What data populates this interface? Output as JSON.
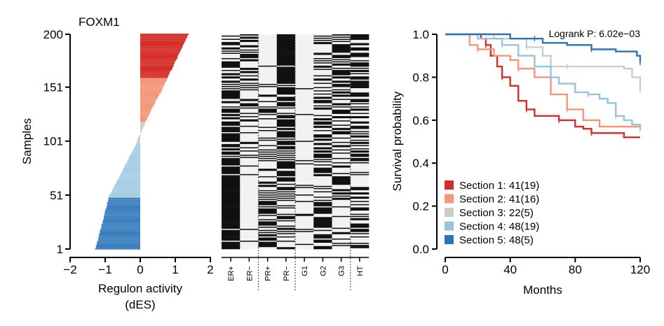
{
  "figure": {
    "gene": "FOXM1",
    "left_panel": {
      "ylabel": "Samples",
      "xlabel_line1": "Regulon activity",
      "xlabel_line2": "(dES)",
      "yticks": [
        "200",
        "151",
        "101",
        "51",
        "1"
      ],
      "xticks": [
        "−2",
        "−1",
        "0",
        "1",
        "2"
      ]
    },
    "heatmap": {
      "columns": [
        "ER+",
        "ER−",
        "PR+",
        "PR−",
        "G1",
        "G2",
        "G3",
        "HT"
      ]
    },
    "right_panel": {
      "ylabel": "Survival probability",
      "xlabel": "Months",
      "pvalue_label": "Logrank P:  6.02e−03",
      "yticks": [
        "1.0",
        "0.8",
        "0.6",
        "0.4",
        "0.2",
        "0.0"
      ],
      "xticks": [
        "0",
        "40",
        "80",
        "120"
      ]
    }
  },
  "chart_data": [
    {
      "type": "bar",
      "orientation": "horizontal",
      "n_samples": 200,
      "xlim": [
        -2,
        2
      ],
      "ylim": [
        1,
        200
      ],
      "sections": [
        {
          "samples": [
            1,
            48
          ],
          "color": "#3a7fbd",
          "dES_range": [
            -1.28,
            -0.9
          ]
        },
        {
          "samples": [
            49,
            96
          ],
          "color": "#a6cde3",
          "dES_range": [
            -0.9,
            -0.15
          ]
        },
        {
          "samples": [
            97,
            118
          ],
          "color": "#cccccc",
          "dES_range": [
            -0.15,
            0.15
          ]
        },
        {
          "samples": [
            119,
            159
          ],
          "color": "#f4967a",
          "dES_range": [
            0.15,
            0.78
          ]
        },
        {
          "samples": [
            160,
            200
          ],
          "color": "#d62c26",
          "dES_range": [
            0.78,
            1.38
          ]
        }
      ]
    },
    {
      "type": "heatmap",
      "columns": [
        "ER+",
        "ER−",
        "PR+",
        "PR−",
        "G1",
        "G2",
        "G3",
        "HT"
      ],
      "rows": 200,
      "values": "binary (black = present, light grey = absent) per sample"
    },
    {
      "type": "line",
      "title": "Logrank P:  6.02e−03",
      "xlabel": "Months",
      "ylabel": "Survival probability",
      "xlim": [
        0,
        120
      ],
      "ylim": [
        0,
        1
      ],
      "legend_position": "bottom-left",
      "series": [
        {
          "name": "Section 1: 41(19)",
          "color": "#d62c26",
          "points": [
            [
              0,
              1.0
            ],
            [
              20,
              1.0
            ],
            [
              22,
              0.98
            ],
            [
              25,
              0.95
            ],
            [
              28,
              0.9
            ],
            [
              32,
              0.85
            ],
            [
              35,
              0.8
            ],
            [
              40,
              0.76
            ],
            [
              45,
              0.69
            ],
            [
              50,
              0.65
            ],
            [
              55,
              0.62
            ],
            [
              60,
              0.62
            ],
            [
              70,
              0.6
            ],
            [
              80,
              0.57
            ],
            [
              85,
              0.56
            ],
            [
              90,
              0.54
            ],
            [
              110,
              0.52
            ],
            [
              120,
              0.52
            ]
          ]
        },
        {
          "name": "Section 2: 41(16)",
          "color": "#f4967a",
          "points": [
            [
              0,
              1.0
            ],
            [
              12,
              1.0
            ],
            [
              15,
              0.95
            ],
            [
              20,
              0.93
            ],
            [
              30,
              0.9
            ],
            [
              40,
              0.88
            ],
            [
              45,
              0.84
            ],
            [
              55,
              0.8
            ],
            [
              65,
              0.72
            ],
            [
              75,
              0.65
            ],
            [
              85,
              0.6
            ],
            [
              95,
              0.57
            ],
            [
              120,
              0.57
            ]
          ]
        },
        {
          "name": "Section 3: 22(5)",
          "color": "#cccccc",
          "points": [
            [
              0,
              1.0
            ],
            [
              25,
              1.0
            ],
            [
              30,
              0.98
            ],
            [
              50,
              0.94
            ],
            [
              60,
              0.9
            ],
            [
              65,
              0.85
            ],
            [
              75,
              0.85
            ],
            [
              110,
              0.84
            ],
            [
              115,
              0.8
            ],
            [
              120,
              0.74
            ]
          ]
        },
        {
          "name": "Section 4: 48(19)",
          "color": "#95c3e0",
          "points": [
            [
              0,
              1.0
            ],
            [
              15,
              1.0
            ],
            [
              20,
              0.98
            ],
            [
              35,
              0.95
            ],
            [
              45,
              0.9
            ],
            [
              55,
              0.85
            ],
            [
              65,
              0.8
            ],
            [
              70,
              0.77
            ],
            [
              80,
              0.73
            ],
            [
              88,
              0.72
            ],
            [
              95,
              0.7
            ],
            [
              100,
              0.68
            ],
            [
              105,
              0.62
            ],
            [
              110,
              0.6
            ],
            [
              115,
              0.58
            ],
            [
              120,
              0.56
            ]
          ]
        },
        {
          "name": "Section 5: 48(5)",
          "color": "#2a76b4",
          "points": [
            [
              0,
              1.0
            ],
            [
              30,
              1.0
            ],
            [
              40,
              0.98
            ],
            [
              55,
              0.98
            ],
            [
              60,
              0.96
            ],
            [
              75,
              0.95
            ],
            [
              90,
              0.93
            ],
            [
              105,
              0.92
            ],
            [
              118,
              0.9
            ],
            [
              120,
              0.87
            ]
          ]
        }
      ]
    }
  ]
}
